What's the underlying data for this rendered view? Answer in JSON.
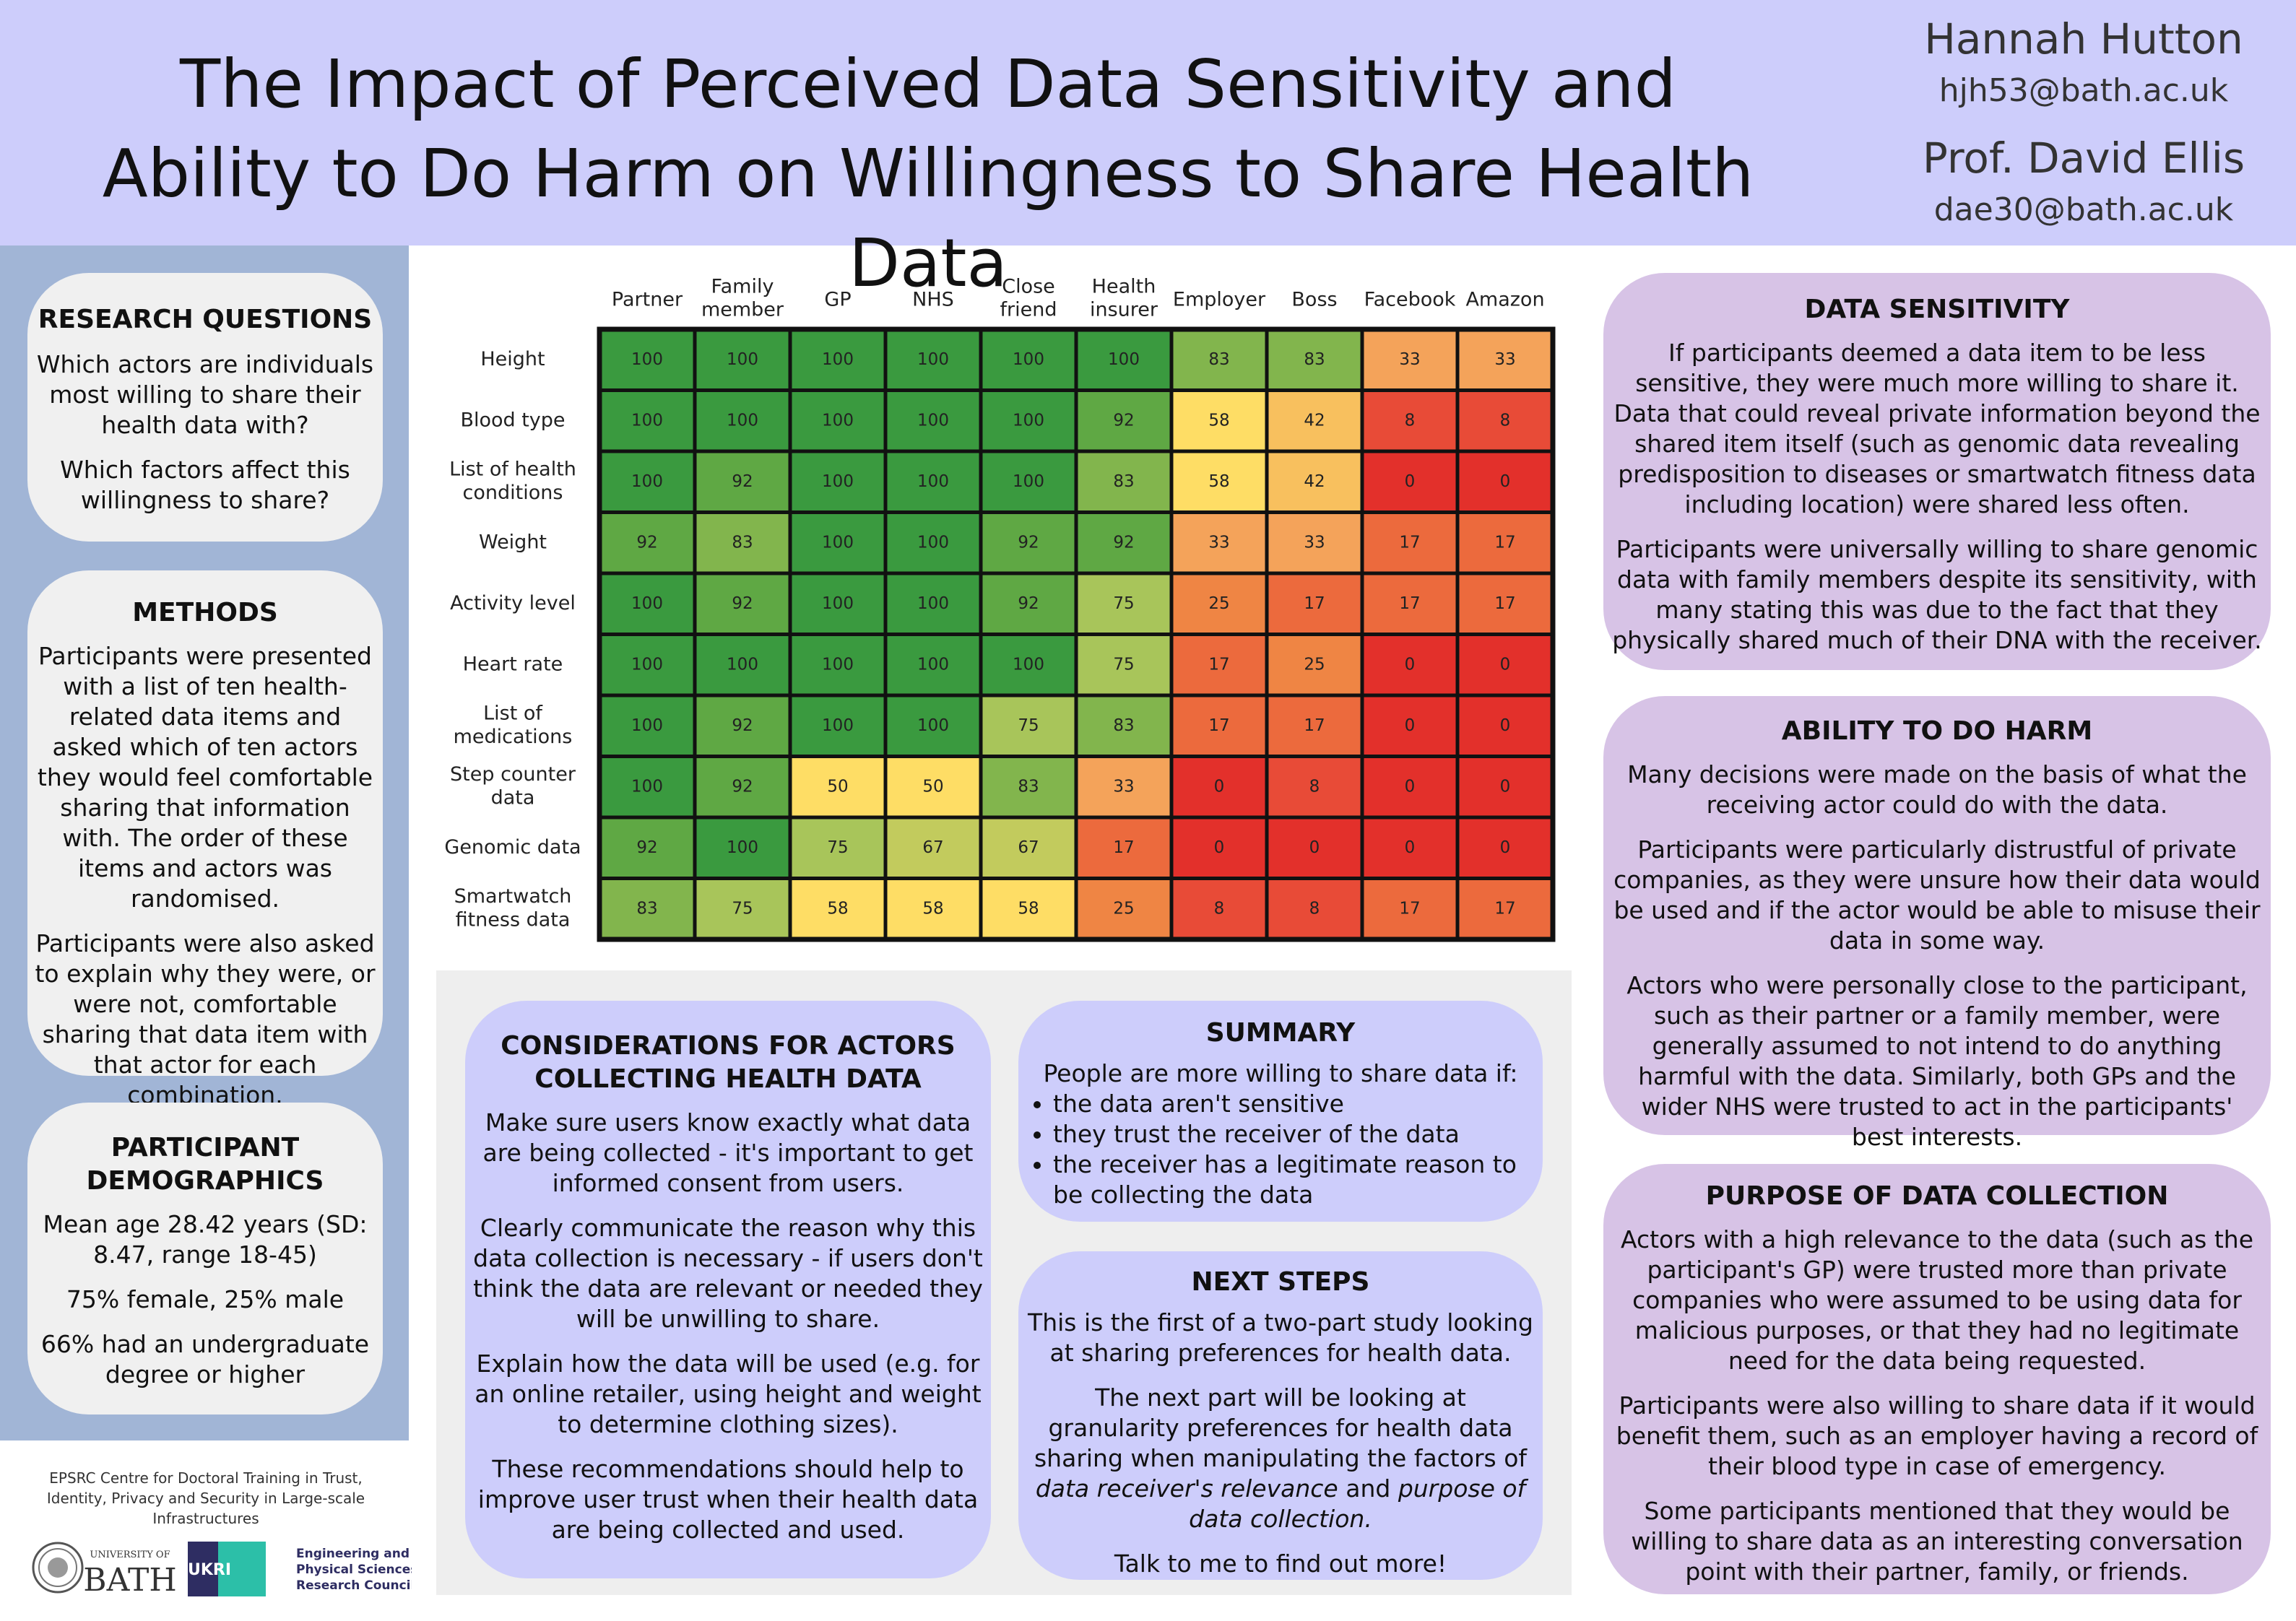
{
  "header": {
    "title_line1": "The Impact of Perceived Data Sensitivity and",
    "title_line2": "Ability to Do Harm on Willingness to Share Health Data",
    "author1_name": "Hannah Hutton",
    "author1_email": "hjh53@bath.ac.uk",
    "author2_name": "Prof. David Ellis",
    "author2_email": "dae30@bath.ac.uk"
  },
  "research_questions": {
    "heading": "RESEARCH QUESTIONS",
    "q1": "Which actors are individuals most willing to share their health data with?",
    "q2": "Which factors affect this willingness to share?"
  },
  "methods": {
    "heading": "METHODS",
    "p1": "Participants were presented with a list of ten health-related data items and asked which of ten actors they would feel comfortable sharing that information with. The order of these items and actors was randomised.",
    "p2": "Participants were also asked to explain why they were, or were not, comfortable sharing that data item with that actor for each combination."
  },
  "demographics": {
    "heading_line1": "PARTICIPANT",
    "heading_line2": "DEMOGRAPHICS",
    "p1": "Mean age 28.42 years (SD: 8.47, range 18-45)",
    "p2": "75% female, 25% male",
    "p3": "66% had an undergraduate degree or higher"
  },
  "footer": {
    "centre_text": "EPSRC Centre for Doctoral Training in Trust, Identity, Privacy and Security in Large-scale Infrastructures",
    "bath_small": "UNIVERSITY OF",
    "bath_big": "BATH",
    "ukri": "UKRI",
    "epsrc_line1": "Engineering and",
    "epsrc_line2": "Physical Sciences",
    "epsrc_line3": "Research Council"
  },
  "chart_data": {
    "type": "heatmap",
    "columns": [
      [
        "Partner"
      ],
      [
        "Family",
        "member"
      ],
      [
        "GP"
      ],
      [
        "NHS"
      ],
      [
        "Close",
        "friend"
      ],
      [
        "Health",
        "insurer"
      ],
      [
        "Employer"
      ],
      [
        "Boss"
      ],
      [
        "Facebook"
      ],
      [
        "Amazon"
      ]
    ],
    "rows": [
      [
        "Height"
      ],
      [
        "Blood type"
      ],
      [
        "List of health",
        "conditions"
      ],
      [
        "Weight"
      ],
      [
        "Activity level"
      ],
      [
        "Heart rate"
      ],
      [
        "List of",
        "medications"
      ],
      [
        "Step counter",
        "data"
      ],
      [
        "Genomic data"
      ],
      [
        "Smartwatch",
        "fitness data"
      ]
    ],
    "values": [
      [
        100,
        100,
        100,
        100,
        100,
        100,
        83,
        83,
        33,
        33
      ],
      [
        100,
        100,
        100,
        100,
        100,
        92,
        58,
        42,
        8,
        8
      ],
      [
        100,
        92,
        100,
        100,
        100,
        83,
        58,
        42,
        0,
        0
      ],
      [
        92,
        83,
        100,
        100,
        92,
        92,
        33,
        33,
        17,
        17
      ],
      [
        100,
        92,
        100,
        100,
        92,
        75,
        25,
        17,
        17,
        17
      ],
      [
        100,
        100,
        100,
        100,
        100,
        75,
        17,
        25,
        0,
        0
      ],
      [
        100,
        92,
        100,
        100,
        75,
        83,
        17,
        17,
        0,
        0
      ],
      [
        100,
        92,
        50,
        50,
        83,
        33,
        0,
        8,
        0,
        0
      ],
      [
        92,
        100,
        75,
        67,
        67,
        17,
        0,
        0,
        0,
        0
      ],
      [
        83,
        75,
        58,
        58,
        58,
        25,
        8,
        8,
        17,
        17
      ]
    ],
    "color_scale": {
      "0": "#e3302b",
      "8": "#e84b37",
      "17": "#ec6a3d",
      "25": "#ef8544",
      "33": "#f4a35a",
      "42": "#f8c05e",
      "50": "#fedd65",
      "58": "#fedd65",
      "67": "#c2cb5d",
      "75": "#a8c55a",
      "83": "#82b54d",
      "92": "#5fa844",
      "100": "#3a9a3f"
    }
  },
  "considerations": {
    "heading_line1": "CONSIDERATIONS FOR ACTORS",
    "heading_line2": "COLLECTING HEALTH DATA",
    "p1": "Make sure users know exactly what data are being collected - it's important to get informed consent from users.",
    "p2": "Clearly communicate the reason why this data collection is necessary - if users don't think the data are relevant or needed they will be unwilling to share.",
    "p3": "Explain how the data will be used (e.g. for an online retailer, using height and weight to determine clothing sizes).",
    "p4": "These recommendations should help to improve user trust when their health data are being collected and used."
  },
  "summary": {
    "heading": "SUMMARY",
    "intro": "People are more willing to share data if:",
    "b1": "the data aren't sensitive",
    "b2": "they trust the receiver of the data",
    "b3": "the receiver has a legitimate reason to be collecting the data"
  },
  "next_steps": {
    "heading": "NEXT STEPS",
    "p1": "This is the first of a two-part study looking at sharing preferences for health data.",
    "p2_a": "The next part will be looking at granularity preferences for health data sharing when manipulating the factors  of ",
    "p2_b": "data receiver's relevance",
    "p2_c": " and ",
    "p2_d": "purpose of data collection.",
    "p3": "Talk to me to find out more!"
  },
  "data_sensitivity": {
    "heading": "DATA SENSITIVITY",
    "p1": "If participants deemed a data item to be less sensitive, they were much more willing to share it. Data that could reveal private information beyond the shared item itself (such as genomic data revealing predisposition to diseases or smartwatch fitness data including location) were shared less often.",
    "p2": "Participants were universally willing to share genomic data with family members despite its sensitivity, with many stating this was due to the fact that they physically shared much of their DNA with the receiver."
  },
  "ability_harm": {
    "heading": "ABILITY TO DO HARM",
    "p1": "Many decisions were made on the basis of what the receiving actor could do with the data.",
    "p2": "Participants were particularly distrustful of private companies, as they were unsure how their data would be used and if the actor would be able to misuse their data in some way.",
    "p3": "Actors who were personally close to the participant, such as their partner or a family member, were generally assumed to not intend to do anything harmful with the data. Similarly, both GPs and the wider NHS were trusted to act in the participants' best interests."
  },
  "purpose": {
    "heading": "PURPOSE OF DATA COLLECTION",
    "p1": "Actors with a high relevance to the data (such as the participant's GP) were trusted more than private companies who were assumed to be using data for malicious purposes, or that they had no legitimate need for the data being requested.",
    "p2": "Participants were also willing to share data if it would benefit them, such as an employer having a record of their blood type in case of emergency.",
    "p3": "Some participants mentioned that they would be willing to share data as an interesting conversation point with their partner, family, or friends."
  }
}
